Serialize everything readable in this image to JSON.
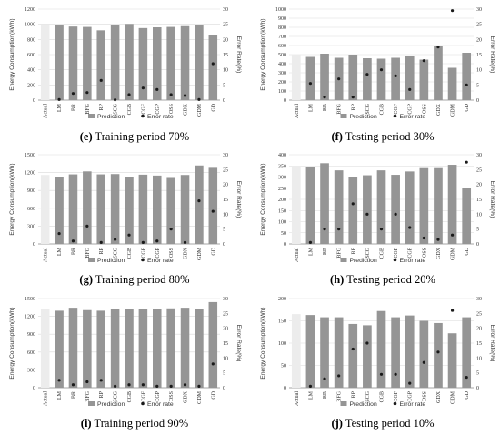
{
  "chart_data": [
    {
      "type": "bar",
      "caption_letter": "(e)",
      "caption_text": " Training period 70%",
      "ylabel": "Energy Consumption(kWh)",
      "y2label": "Error Rate(%)",
      "categories": [
        "Actual",
        "LM",
        "BR",
        "BFG",
        "RP",
        "SCG",
        "CGB",
        "CGF",
        "CGP",
        "OSS",
        "GDX",
        "GDM",
        "GD"
      ],
      "yticks": [
        0,
        200,
        400,
        600,
        800,
        1000,
        1200
      ],
      "ylim": [
        0,
        1200
      ],
      "y2ticks": [
        0,
        5,
        10,
        15,
        20,
        25,
        30
      ],
      "y2lim": [
        0,
        30
      ],
      "series": [
        {
          "name": "Prediction",
          "values": [
            990,
            995,
            970,
            965,
            920,
            990,
            1005,
            950,
            960,
            965,
            975,
            990,
            860
          ]
        },
        {
          "name": "Error rate",
          "values": [
            null,
            0.2,
            2.2,
            2.5,
            6.5,
            0.1,
            1.8,
            4.0,
            3.5,
            1.8,
            1.5,
            0.2,
            12.0
          ]
        }
      ],
      "legend": "bottom"
    },
    {
      "type": "bar",
      "caption_letter": "(f)",
      "caption_text": " Testing period 30%",
      "ylabel": "Energy Consumption(kWh)",
      "y2label": "Error Rate(%)",
      "categories": [
        "Actual",
        "LM",
        "BR",
        "BFG",
        "RP",
        "SCG",
        "CGB",
        "CGF",
        "CGP",
        "OSS",
        "GDX",
        "GDM",
        "GD"
      ],
      "yticks": [
        0,
        100,
        200,
        300,
        400,
        500,
        600,
        700,
        800,
        900,
        1000
      ],
      "ylim": [
        0,
        1000
      ],
      "y2ticks": [
        0,
        5,
        10,
        15,
        20,
        25,
        30
      ],
      "y2lim": [
        0,
        30
      ],
      "series": [
        {
          "name": "Prediction",
          "values": [
            505,
            475,
            510,
            465,
            500,
            460,
            455,
            465,
            480,
            445,
            600,
            355,
            520
          ]
        },
        {
          "name": "Error rate",
          "values": [
            null,
            5.5,
            1.0,
            7.0,
            1.0,
            8.5,
            10.0,
            8.0,
            3.5,
            13.0,
            17.5,
            29.5,
            5.0
          ]
        }
      ],
      "legend": "bottom"
    },
    {
      "type": "bar",
      "caption_letter": "(g)",
      "caption_text": " Training period 80%",
      "ylabel": "Energy Consumption(kWh)",
      "y2label": "Error Rate(%)",
      "categories": [
        "Actual",
        "LM",
        "BR",
        "BFG",
        "RP",
        "SCG",
        "CGB",
        "CGF",
        "CGP",
        "OSS",
        "GDX",
        "GDM",
        "GD"
      ],
      "yticks": [
        0,
        300,
        600,
        900,
        1200,
        1500
      ],
      "ylim": [
        0,
        1500
      ],
      "y2ticks": [
        0,
        5,
        10,
        15,
        20,
        25,
        30
      ],
      "y2lim": [
        0,
        30
      ],
      "series": [
        {
          "name": "Prediction",
          "values": [
            1160,
            1120,
            1170,
            1220,
            1170,
            1175,
            1120,
            1165,
            1150,
            1110,
            1160,
            1320,
            1280
          ]
        },
        {
          "name": "Error rate",
          "values": [
            null,
            3.5,
            1.0,
            6.0,
            0.5,
            1.5,
            3.0,
            0.5,
            1.0,
            5.0,
            0.5,
            14.5,
            11.0
          ]
        }
      ],
      "legend": "bottom"
    },
    {
      "type": "bar",
      "caption_letter": "(h)",
      "caption_text": " Testing period 20%",
      "ylabel": "Energy Consumption(kWh)",
      "y2label": "Error Rate(%)",
      "categories": [
        "Actual",
        "LM",
        "BR",
        "BFG",
        "RP",
        "SCG",
        "CGB",
        "CGF",
        "CGP",
        "OSS",
        "GDX",
        "GDM",
        "GD"
      ],
      "yticks": [
        0,
        50,
        100,
        150,
        200,
        250,
        300,
        350,
        400
      ],
      "ylim": [
        0,
        400
      ],
      "y2ticks": [
        0,
        5,
        10,
        15,
        20,
        25,
        30
      ],
      "y2lim": [
        0,
        30
      ],
      "series": [
        {
          "name": "Prediction",
          "values": [
            345,
            345,
            362,
            330,
            298,
            308,
            330,
            310,
            325,
            340,
            340,
            355,
            250
          ]
        },
        {
          "name": "Error rate",
          "values": [
            null,
            0.5,
            5.0,
            5.0,
            13.5,
            10.0,
            5.0,
            10.0,
            5.5,
            2.0,
            1.5,
            3.0,
            27.5
          ]
        }
      ],
      "legend": "bottom"
    },
    {
      "type": "bar",
      "caption_letter": "(i)",
      "caption_text": " Training period 90%",
      "ylabel": "Energy Consumption(kWh)",
      "y2label": "Error Rate(%)",
      "categories": [
        "Actual",
        "LM",
        "BR",
        "BFG",
        "RP",
        "SCG",
        "CGB",
        "CGF",
        "CGP",
        "OSS",
        "GDX",
        "GDM",
        "GD"
      ],
      "yticks": [
        0,
        300,
        600,
        900,
        1200,
        1500
      ],
      "ylim": [
        0,
        1500
      ],
      "y2ticks": [
        0,
        5,
        10,
        15,
        20,
        25,
        30
      ],
      "y2lim": [
        0,
        30
      ],
      "series": [
        {
          "name": "Prediction",
          "values": [
            1330,
            1295,
            1345,
            1305,
            1295,
            1325,
            1325,
            1320,
            1320,
            1335,
            1345,
            1325,
            1440
          ]
        },
        {
          "name": "Error rate",
          "values": [
            null,
            2.5,
            1.0,
            2.0,
            2.5,
            0.5,
            1.0,
            1.0,
            0.5,
            0.5,
            1.0,
            0.5,
            8.0
          ]
        }
      ],
      "legend": "bottom"
    },
    {
      "type": "bar",
      "caption_letter": "(j)",
      "caption_text": " Testing period 10%",
      "ylabel": "Energy Consumption(kWh)",
      "y2label": "Error Rate(%)",
      "categories": [
        "Actual",
        "LM",
        "BR",
        "BFG",
        "RP",
        "SCG",
        "CGB",
        "CGF",
        "CGP",
        "OSS",
        "GDX",
        "GDM",
        "GD"
      ],
      "yticks": [
        0,
        50,
        100,
        150,
        200
      ],
      "ylim": [
        0,
        200
      ],
      "y2ticks": [
        0,
        5,
        10,
        15,
        20,
        25,
        30
      ],
      "y2lim": [
        0,
        30
      ],
      "series": [
        {
          "name": "Prediction",
          "values": [
            165,
            163,
            158,
            158,
            143,
            140,
            172,
            158,
            162,
            150,
            145,
            122,
            158
          ]
        },
        {
          "name": "Error rate",
          "values": [
            null,
            0.5,
            3.0,
            4.0,
            13.0,
            15.0,
            4.5,
            4.5,
            1.5,
            8.5,
            12.0,
            26.0,
            3.5
          ]
        }
      ],
      "legend": "bottom"
    }
  ],
  "colors": {
    "actual_bar": "#ececec",
    "prediction_bar": "#959595",
    "error_marker": "#1a1a1a",
    "gridline": "#d9d9d9",
    "axis": "#8c8c8c",
    "text": "#333333"
  }
}
